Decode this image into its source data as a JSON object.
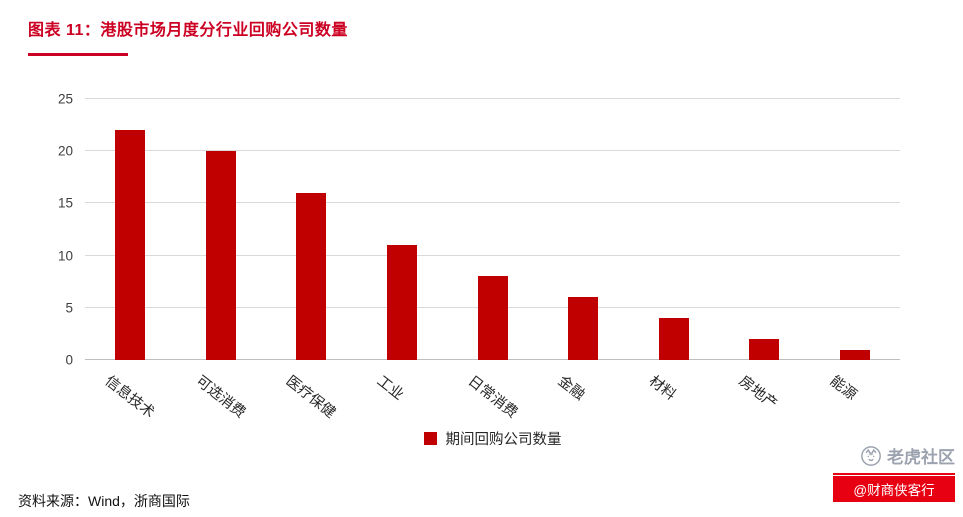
{
  "header": {
    "title": "图表 11：港股市场月度分行业回购公司数量"
  },
  "chart_data": {
    "type": "bar",
    "title": "港股市场月度分行业回购公司数量",
    "categories": [
      "信息技术",
      "可选消费",
      "医疗保健",
      "工业",
      "日常消费",
      "金融",
      "材料",
      "房地产",
      "能源"
    ],
    "values": [
      22,
      20,
      16,
      11,
      8,
      6,
      4,
      2,
      1
    ],
    "series_name": "期间回购公司数量",
    "xlabel": "",
    "ylabel": "",
    "ylim": [
      0,
      25
    ],
    "yticks": [
      0,
      5,
      10,
      15,
      20,
      25
    ],
    "grid": "horizontal",
    "legend_position": "bottom",
    "bar_color": "#C00000"
  },
  "legend": {
    "label": "期间回购公司数量"
  },
  "footer": {
    "source": "资料来源：Wind，浙商国际"
  },
  "watermark": {
    "brand": "老虎社区",
    "handle": "@财商侠客行"
  },
  "colors": {
    "accent": "#CC0022",
    "bar": "#C00000",
    "grid": "#D9D9D9",
    "watermark_gray": "#9CA3AF",
    "watermark_red": "#E60012"
  }
}
